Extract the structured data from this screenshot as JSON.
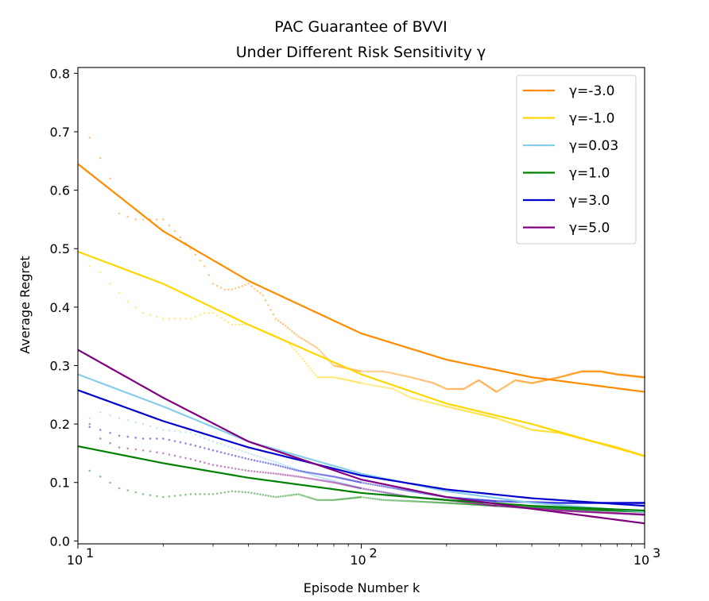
{
  "chart_data": {
    "type": "line",
    "title_line1": "PAC Guarantee of BVVI",
    "title_line2": "Under Different Risk Sensitivity  γ",
    "xlabel": "Episode Number k",
    "ylabel": "Average Regret",
    "xscale": "log",
    "xlim": [
      10,
      1000
    ],
    "ylim": [
      -0.005,
      0.81
    ],
    "x_ticks": [
      {
        "value": 10,
        "base": "10",
        "exp": "1"
      },
      {
        "value": 100,
        "base": "10",
        "exp": "2"
      },
      {
        "value": 1000,
        "base": "10",
        "exp": "3"
      }
    ],
    "y_ticks": [
      "0.0",
      "0.1",
      "0.2",
      "0.3",
      "0.4",
      "0.5",
      "0.6",
      "0.7",
      "0.8"
    ],
    "grid": false,
    "legend_position": "top-right",
    "series": [
      {
        "name": "γ=-3.0",
        "color": "#ff8c00",
        "fit": [
          [
            10,
            0.645
          ],
          [
            20,
            0.53
          ],
          [
            40,
            0.445
          ],
          [
            100,
            0.355
          ],
          [
            200,
            0.31
          ],
          [
            400,
            0.28
          ],
          [
            1000,
            0.255
          ]
        ],
        "empirical": [
          [
            11,
            0.69
          ],
          [
            12,
            0.655
          ],
          [
            13,
            0.62
          ],
          [
            14,
            0.56
          ],
          [
            16,
            0.55
          ],
          [
            18,
            0.55
          ],
          [
            20,
            0.55
          ],
          [
            22,
            0.53
          ],
          [
            25,
            0.5
          ],
          [
            28,
            0.47
          ],
          [
            30,
            0.44
          ],
          [
            33,
            0.43
          ],
          [
            35,
            0.43
          ],
          [
            40,
            0.44
          ],
          [
            45,
            0.42
          ],
          [
            50,
            0.38
          ],
          [
            55,
            0.365
          ],
          [
            60,
            0.35
          ],
          [
            70,
            0.33
          ],
          [
            80,
            0.3
          ],
          [
            90,
            0.295
          ],
          [
            100,
            0.29
          ],
          [
            120,
            0.29
          ],
          [
            150,
            0.28
          ],
          [
            180,
            0.27
          ],
          [
            200,
            0.26
          ],
          [
            230,
            0.26
          ],
          [
            260,
            0.275
          ],
          [
            300,
            0.255
          ],
          [
            350,
            0.275
          ],
          [
            400,
            0.27
          ],
          [
            500,
            0.28
          ],
          [
            600,
            0.29
          ],
          [
            700,
            0.29
          ],
          [
            800,
            0.285
          ],
          [
            1000,
            0.28
          ]
        ]
      },
      {
        "name": "γ=-1.0",
        "color": "#ffd700",
        "fit": [
          [
            10,
            0.495
          ],
          [
            20,
            0.44
          ],
          [
            40,
            0.37
          ],
          [
            100,
            0.285
          ],
          [
            200,
            0.235
          ],
          [
            400,
            0.2
          ],
          [
            1000,
            0.145
          ]
        ],
        "empirical": [
          [
            11,
            0.47
          ],
          [
            12,
            0.46
          ],
          [
            13,
            0.44
          ],
          [
            15,
            0.41
          ],
          [
            17,
            0.39
          ],
          [
            20,
            0.38
          ],
          [
            25,
            0.38
          ],
          [
            28,
            0.39
          ],
          [
            30,
            0.39
          ],
          [
            35,
            0.37
          ],
          [
            40,
            0.37
          ],
          [
            50,
            0.35
          ],
          [
            55,
            0.34
          ],
          [
            60,
            0.32
          ],
          [
            70,
            0.28
          ],
          [
            80,
            0.28
          ],
          [
            90,
            0.275
          ],
          [
            100,
            0.27
          ],
          [
            130,
            0.26
          ],
          [
            150,
            0.245
          ],
          [
            200,
            0.23
          ],
          [
            300,
            0.21
          ],
          [
            400,
            0.19
          ],
          [
            500,
            0.185
          ],
          [
            600,
            0.175
          ],
          [
            800,
            0.16
          ],
          [
            1000,
            0.145
          ]
        ]
      },
      {
        "name": "γ=0.03",
        "color": "#87ceeb",
        "fit": [
          [
            10,
            0.285
          ],
          [
            20,
            0.23
          ],
          [
            40,
            0.17
          ],
          [
            100,
            0.115
          ],
          [
            200,
            0.085
          ],
          [
            400,
            0.065
          ],
          [
            1000,
            0.05
          ]
        ],
        "empirical": [
          [
            11,
            0.21
          ],
          [
            12,
            0.22
          ],
          [
            14,
            0.21
          ],
          [
            17,
            0.2
          ],
          [
            20,
            0.19
          ],
          [
            25,
            0.185
          ],
          [
            30,
            0.17
          ],
          [
            40,
            0.15
          ],
          [
            50,
            0.135
          ],
          [
            70,
            0.11
          ],
          [
            100,
            0.09
          ],
          [
            150,
            0.075
          ],
          [
            200,
            0.07
          ],
          [
            300,
            0.065
          ],
          [
            500,
            0.055
          ],
          [
            1000,
            0.05
          ]
        ]
      },
      {
        "name": "γ=1.0",
        "color": "#008000",
        "fit": [
          [
            10,
            0.162
          ],
          [
            20,
            0.133
          ],
          [
            40,
            0.108
          ],
          [
            100,
            0.082
          ],
          [
            200,
            0.07
          ],
          [
            400,
            0.06
          ],
          [
            1000,
            0.052
          ]
        ],
        "empirical": [
          [
            11,
            0.12
          ],
          [
            12,
            0.11
          ],
          [
            14,
            0.09
          ],
          [
            17,
            0.08
          ],
          [
            20,
            0.075
          ],
          [
            25,
            0.08
          ],
          [
            30,
            0.08
          ],
          [
            35,
            0.085
          ],
          [
            40,
            0.083
          ],
          [
            50,
            0.075
          ],
          [
            60,
            0.08
          ],
          [
            70,
            0.07
          ],
          [
            80,
            0.07
          ],
          [
            100,
            0.075
          ],
          [
            120,
            0.07
          ],
          [
            150,
            0.068
          ],
          [
            200,
            0.065
          ],
          [
            300,
            0.06
          ],
          [
            500,
            0.055
          ],
          [
            1000,
            0.05
          ]
        ]
      },
      {
        "name": "γ=3.0",
        "color": "#0000cd",
        "fit": [
          [
            10,
            0.258
          ],
          [
            20,
            0.205
          ],
          [
            40,
            0.16
          ],
          [
            100,
            0.112
          ],
          [
            200,
            0.088
          ],
          [
            400,
            0.073
          ],
          [
            1000,
            0.06
          ]
        ],
        "empirical": [
          [
            11,
            0.195
          ],
          [
            12,
            0.19
          ],
          [
            14,
            0.18
          ],
          [
            17,
            0.175
          ],
          [
            20,
            0.175
          ],
          [
            25,
            0.165
          ],
          [
            30,
            0.155
          ],
          [
            40,
            0.14
          ],
          [
            50,
            0.13
          ],
          [
            60,
            0.12
          ],
          [
            80,
            0.11
          ],
          [
            100,
            0.1
          ],
          [
            150,
            0.085
          ],
          [
            200,
            0.075
          ],
          [
            300,
            0.068
          ],
          [
            500,
            0.065
          ],
          [
            1000,
            0.065
          ]
        ]
      },
      {
        "name": "γ=5.0",
        "color": "#800080",
        "fit": [
          [
            10,
            0.327
          ],
          [
            20,
            0.245
          ],
          [
            40,
            0.17
          ],
          [
            100,
            0.105
          ],
          [
            200,
            0.075
          ],
          [
            400,
            0.055
          ],
          [
            1000,
            0.03
          ]
        ],
        "empirical": [
          [
            11,
            0.2
          ],
          [
            12,
            0.175
          ],
          [
            14,
            0.16
          ],
          [
            17,
            0.155
          ],
          [
            20,
            0.15
          ],
          [
            25,
            0.14
          ],
          [
            30,
            0.13
          ],
          [
            40,
            0.12
          ],
          [
            50,
            0.115
          ],
          [
            60,
            0.11
          ],
          [
            80,
            0.1
          ],
          [
            100,
            0.09
          ],
          [
            150,
            0.075
          ],
          [
            200,
            0.07
          ],
          [
            300,
            0.06
          ],
          [
            500,
            0.052
          ],
          [
            1000,
            0.045
          ]
        ]
      }
    ]
  }
}
